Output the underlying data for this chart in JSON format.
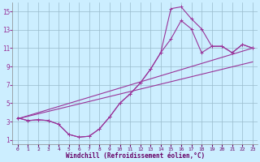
{
  "xlabel": "Windchill (Refroidissement éolien,°C)",
  "bg_color": "#cceeff",
  "line_color": "#993399",
  "grid_color": "#99bbcc",
  "x_ticks": [
    0,
    1,
    2,
    3,
    4,
    5,
    6,
    7,
    8,
    9,
    10,
    11,
    12,
    13,
    14,
    15,
    16,
    17,
    18,
    19,
    20,
    21,
    22,
    23
  ],
  "y_ticks": [
    1,
    3,
    5,
    7,
    9,
    11,
    13,
    15
  ],
  "xlim": [
    -0.5,
    23.5
  ],
  "ylim": [
    0.5,
    16.0
  ],
  "curve1_x": [
    0,
    1,
    2,
    3,
    4,
    5,
    6,
    7,
    8,
    9,
    10,
    11,
    12,
    13,
    14,
    15,
    16,
    17,
    18,
    19,
    20,
    21,
    22,
    23
  ],
  "curve1_y": [
    3.4,
    3.1,
    3.2,
    3.1,
    2.7,
    1.6,
    1.3,
    1.4,
    2.2,
    3.5,
    5.0,
    6.0,
    7.2,
    8.7,
    10.5,
    15.3,
    15.5,
    14.2,
    13.1,
    11.2,
    11.2,
    10.5,
    11.4,
    11.0
  ],
  "curve2_x": [
    0,
    1,
    2,
    3,
    4,
    5,
    6,
    7,
    8,
    9,
    10,
    11,
    12,
    13,
    14,
    15,
    16,
    17,
    18,
    19,
    20,
    21,
    22,
    23
  ],
  "curve2_y": [
    3.4,
    3.1,
    3.2,
    3.1,
    2.7,
    1.6,
    1.3,
    1.4,
    2.2,
    3.5,
    5.0,
    6.0,
    7.2,
    8.7,
    10.5,
    12.0,
    14.0,
    13.1,
    10.5,
    11.2,
    11.2,
    10.5,
    11.4,
    11.0
  ],
  "line1_x": [
    0,
    23
  ],
  "line1_y": [
    3.3,
    11.0
  ],
  "line2_x": [
    0,
    23
  ],
  "line2_y": [
    3.3,
    9.5
  ]
}
